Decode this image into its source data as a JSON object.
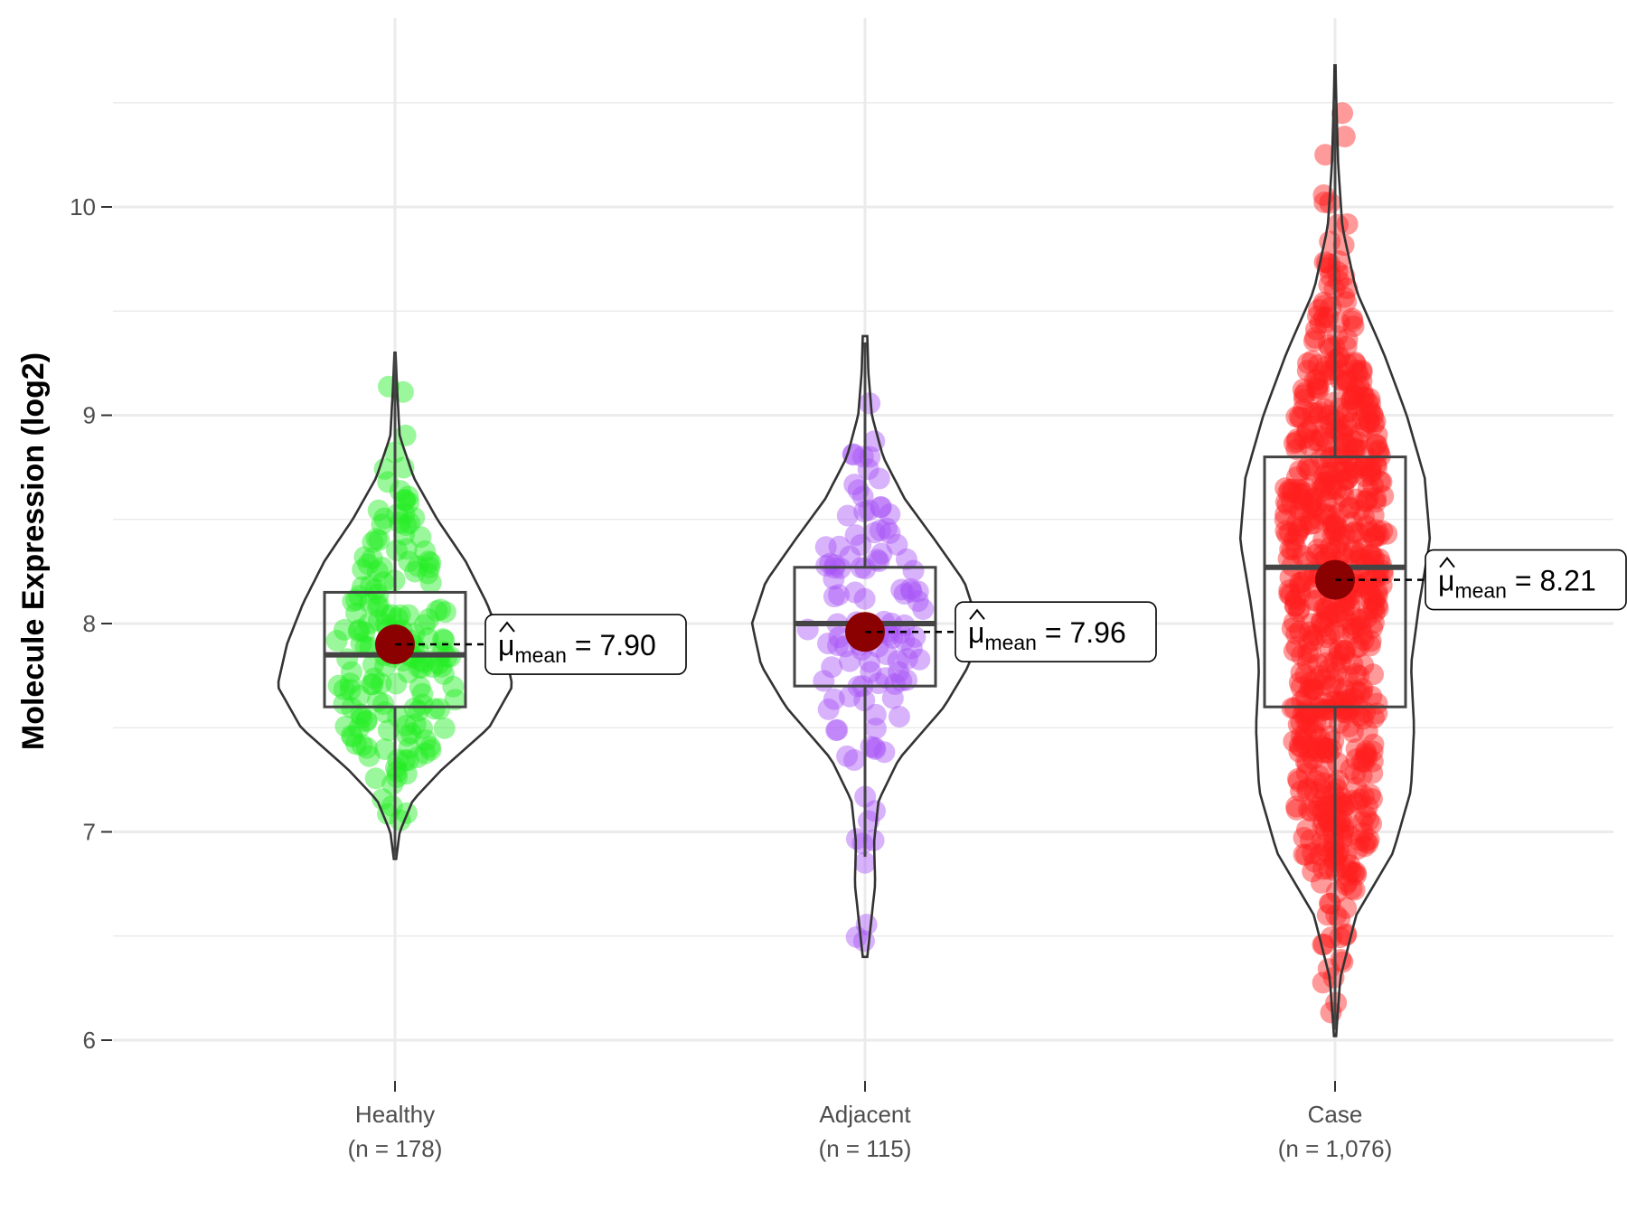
{
  "chart_data": {
    "type": "violin-box-jitter",
    "title": "",
    "xlabel": "",
    "ylabel": "Molecule Expression (log2)",
    "ylim": [
      5.75,
      10.9
    ],
    "yticks": [
      6,
      7,
      8,
      9,
      10
    ],
    "grid": true,
    "mean_symbol": "μ",
    "mean_subscript": "mean",
    "groups": [
      {
        "name": "Healthy",
        "n_label": "(n = 178)",
        "n": 178,
        "color": "#22ee22",
        "box": {
          "q1": 7.6,
          "median": 7.85,
          "q3": 8.15,
          "whisker_low": 6.88,
          "whisker_high": 9.3
        },
        "mean": 7.9,
        "mean_label": "7.90",
        "violin_range": [
          6.87,
          9.3
        ],
        "violin_density": [
          [
            6.87,
            0.01
          ],
          [
            7.0,
            0.04
          ],
          [
            7.15,
            0.15
          ],
          [
            7.3,
            0.4
          ],
          [
            7.5,
            0.8
          ],
          [
            7.7,
            1.0
          ],
          [
            7.9,
            0.92
          ],
          [
            8.1,
            0.78
          ],
          [
            8.3,
            0.6
          ],
          [
            8.5,
            0.36
          ],
          [
            8.7,
            0.16
          ],
          [
            8.9,
            0.04
          ],
          [
            9.1,
            0.02
          ],
          [
            9.3,
            0.005
          ]
        ]
      },
      {
        "name": "Adjacent",
        "n_label": "(n = 115)",
        "n": 115,
        "color": "#a855f7",
        "box": {
          "q1": 7.7,
          "median": 8.0,
          "q3": 8.27,
          "whisker_low": 6.88,
          "whisker_high": 9.35
        },
        "mean": 7.96,
        "mean_label": "7.96",
        "violin_range": [
          6.4,
          9.38
        ],
        "violin_density": [
          [
            6.4,
            0.02
          ],
          [
            6.55,
            0.05
          ],
          [
            6.75,
            0.09
          ],
          [
            6.95,
            0.08
          ],
          [
            7.15,
            0.12
          ],
          [
            7.35,
            0.3
          ],
          [
            7.6,
            0.7
          ],
          [
            7.8,
            0.92
          ],
          [
            8.0,
            1.0
          ],
          [
            8.2,
            0.88
          ],
          [
            8.4,
            0.62
          ],
          [
            8.6,
            0.35
          ],
          [
            8.8,
            0.16
          ],
          [
            9.0,
            0.06
          ],
          [
            9.2,
            0.03
          ],
          [
            9.38,
            0.02
          ]
        ]
      },
      {
        "name": "Case",
        "n_label": "(n = 1,076)",
        "n": 1076,
        "color": "#ff2020",
        "box": {
          "q1": 7.6,
          "median": 8.27,
          "q3": 8.8,
          "whisker_low": 6.05,
          "whisker_high": 10.5
        },
        "mean": 8.21,
        "mean_label": "8.21",
        "violin_range": [
          6.02,
          10.68
        ],
        "violin_density": [
          [
            6.02,
            0.01
          ],
          [
            6.3,
            0.05
          ],
          [
            6.6,
            0.2
          ],
          [
            6.9,
            0.55
          ],
          [
            7.2,
            0.72
          ],
          [
            7.5,
            0.75
          ],
          [
            7.8,
            0.72
          ],
          [
            8.1,
            0.8
          ],
          [
            8.4,
            0.9
          ],
          [
            8.7,
            0.85
          ],
          [
            9.0,
            0.68
          ],
          [
            9.3,
            0.46
          ],
          [
            9.6,
            0.2
          ],
          [
            9.9,
            0.07
          ],
          [
            10.2,
            0.03
          ],
          [
            10.5,
            0.012
          ],
          [
            10.68,
            0.005
          ]
        ]
      }
    ]
  }
}
